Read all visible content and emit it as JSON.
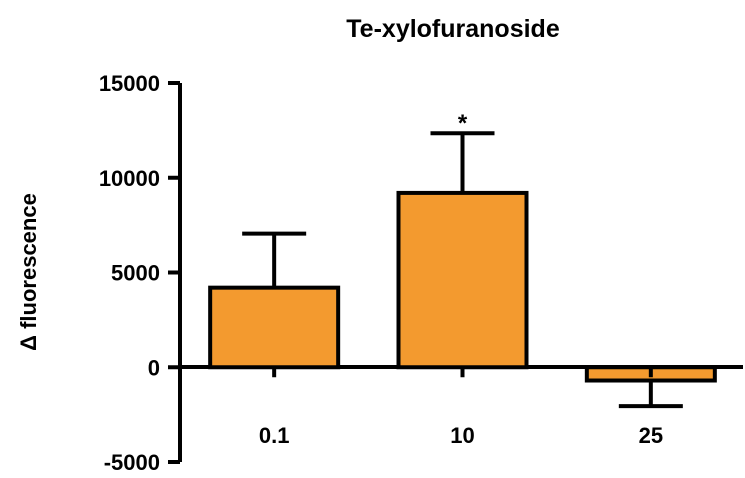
{
  "chart_data": {
    "type": "bar",
    "title": "Te-xylofuranoside",
    "xlabel": "",
    "ylabel": "Δ fluorescence",
    "categories": [
      "0.1",
      "10",
      "25"
    ],
    "values": [
      4200,
      9200,
      -700
    ],
    "error_plus": [
      2850,
      3150,
      1350
    ],
    "ylim": [
      -5000,
      15000
    ],
    "yticks": [
      -5000,
      0,
      5000,
      10000,
      15000
    ],
    "ytick_labels": [
      "-5000",
      "0",
      "5000",
      "10000",
      "15000"
    ],
    "annotations": [
      "",
      "*",
      ""
    ],
    "bar_color": "#F39A2F",
    "edge_color": "#000000",
    "grid": false,
    "legend": "none"
  }
}
